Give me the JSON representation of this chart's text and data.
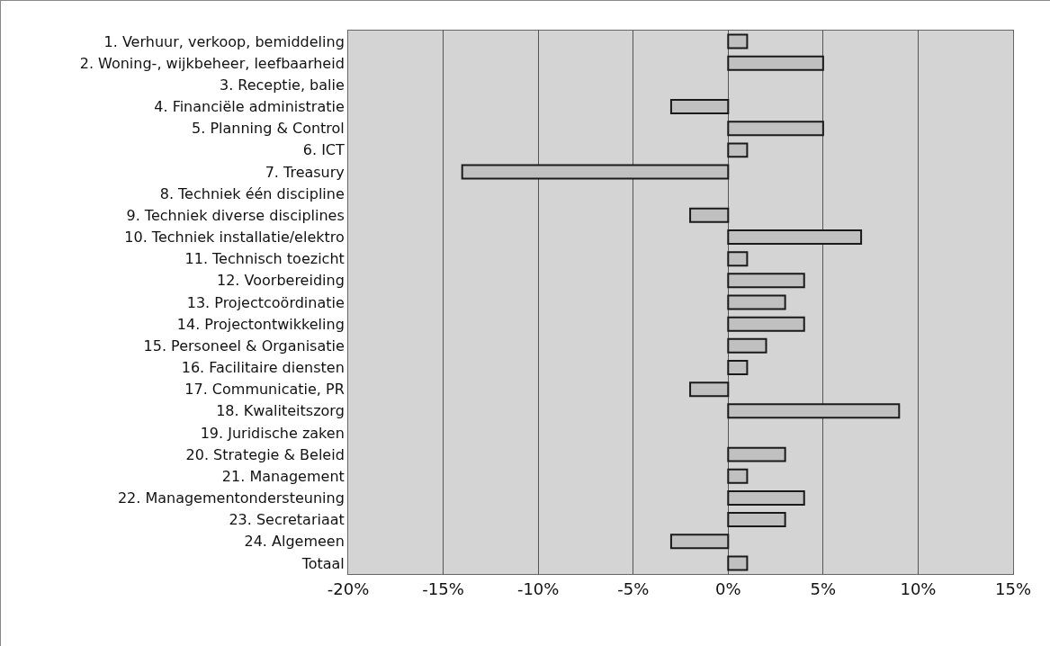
{
  "chart_data": {
    "type": "bar",
    "orientation": "horizontal",
    "categories": [
      "1. Verhuur, verkoop, bemiddeling",
      "2. Woning-, wijkbeheer, leefbaarheid",
      "3. Receptie, balie",
      "4. Financiële administratie",
      "5. Planning & Control",
      "6. ICT",
      "7. Treasury",
      "8. Techniek één discipline",
      "9. Techniek diverse disciplines",
      "10. Techniek installatie/elektro",
      "11. Technisch toezicht",
      "12. Voorbereiding",
      "13. Projectcoördinatie",
      "14. Projectontwikkeling",
      "15. Personeel & Organisatie",
      "16. Facilitaire diensten",
      "17. Communicatie, PR",
      "18. Kwaliteitszorg",
      "19. Juridische zaken",
      "20. Strategie & Beleid",
      "21. Management",
      "22. Managementondersteuning",
      "23. Secretariaat",
      "24. Algemeen",
      "Totaal"
    ],
    "values": [
      1,
      5,
      null,
      -3,
      5,
      1,
      -14,
      null,
      -2,
      7,
      1,
      4,
      3,
      4,
      2,
      1,
      -2,
      9,
      null,
      3,
      1,
      4,
      3,
      -3,
      1
    ],
    "color": "#c0c0c0",
    "xlim": [
      -20,
      15
    ],
    "xticks": [
      {
        "value": -20,
        "label": "-20%"
      },
      {
        "value": -15,
        "label": "-15%"
      },
      {
        "value": -10,
        "label": "-10%"
      },
      {
        "value": -5,
        "label": "-5%"
      },
      {
        "value": 0,
        "label": "0%"
      },
      {
        "value": 5,
        "label": "5%"
      },
      {
        "value": 10,
        "label": "10%"
      },
      {
        "value": 15,
        "label": "15%"
      }
    ],
    "grid": "x"
  }
}
